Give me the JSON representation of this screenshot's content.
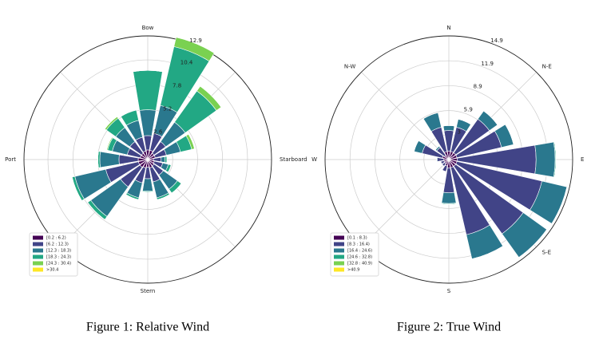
{
  "chart_data": [
    {
      "type": "windrose",
      "title": "Figure 1: Relative Wind",
      "categories": [
        "Bow",
        null,
        null,
        null,
        "Starboard",
        null,
        null,
        null,
        "Stern",
        null,
        null,
        null,
        "Port",
        null,
        null,
        null
      ],
      "rlim": [
        0,
        12.9
      ],
      "rticks": [
        2.6,
        5.2,
        7.8,
        10.4,
        12.9
      ],
      "grid": true,
      "legend": "lower left",
      "series": [
        {
          "name": "[0.2 : 6.2)",
          "color": "#440154",
          "values": [
            1.0,
            1.0,
            0.8,
            0.8,
            0.6,
            0.7,
            0.8,
            0.9,
            0.8,
            0.9,
            1.0,
            1.0,
            1.0,
            0.8,
            0.8,
            0.9
          ]
        },
        {
          "name": "[6.2 : 12.3)",
          "color": "#414487",
          "values": [
            1.5,
            1.8,
            1.5,
            1.2,
            0.8,
            0.9,
            1.2,
            1.5,
            1.2,
            1.6,
            2.5,
            3.5,
            2.0,
            1.4,
            1.5,
            1.5
          ]
        },
        {
          "name": "[12.3 : 18.3)",
          "color": "#2a788e",
          "values": [
            2.7,
            3.0,
            2.5,
            1.5,
            0.4,
            0.6,
            1.8,
            1.7,
            1.3,
            1.6,
            3.8,
            3.3,
            2.0,
            1.6,
            1.8,
            1.8
          ]
        },
        {
          "name": "[18.3 : 24.3)",
          "color": "#22a884",
          "values": [
            4.1,
            6.3,
            4.0,
            1.2,
            0.2,
            0.3,
            0.5,
            0.2,
            0.1,
            0.2,
            0.4,
            0.3,
            0.2,
            0.5,
            1.2,
            1.1
          ]
        },
        {
          "name": "[24.3 : 30.4)",
          "color": "#7ad151",
          "values": [
            0,
            1.0,
            0.6,
            0.3,
            0,
            0,
            0,
            0,
            0,
            0,
            0,
            0,
            0,
            0.1,
            0.2,
            0
          ]
        },
        {
          "name": ">30.4",
          "color": "#fde725",
          "values": [
            0,
            0,
            0,
            0,
            0,
            0,
            0,
            0,
            0,
            0,
            0,
            0,
            0,
            0,
            0,
            0
          ]
        }
      ]
    },
    {
      "type": "windrose",
      "title": "Figure 2: True Wind",
      "categories": [
        "N",
        null,
        "N-E",
        null,
        "E",
        null,
        "S-E",
        null,
        "S",
        null,
        null,
        null,
        "W",
        null,
        "N-W",
        null
      ],
      "rlim": [
        0,
        14.9
      ],
      "rticks": [
        3.0,
        5.9,
        8.9,
        11.9,
        14.9
      ],
      "grid": true,
      "legend": "lower left",
      "series": [
        {
          "name": "[0.1 : 8.3)",
          "color": "#440154",
          "values": [
            1.0,
            1.0,
            1.0,
            1.0,
            1.0,
            1.0,
            1.0,
            1.0,
            1.0,
            0.8,
            0.6,
            0.6,
            0.6,
            0.8,
            0.6,
            1.0
          ]
        },
        {
          "name": "[8.3 : 16.4)",
          "color": "#414487",
          "values": [
            2.5,
            3.0,
            5.0,
            5.5,
            9.5,
            10.5,
            10.0,
            8.3,
            3.0,
            0.7,
            0.4,
            0.4,
            0.8,
            2.5,
            1.2,
            3.0
          ]
        },
        {
          "name": "[16.4 : 24.6)",
          "color": "#2a788e",
          "values": [
            0.6,
            1.0,
            1.2,
            1.5,
            2.3,
            3.1,
            3.5,
            3.0,
            1.3,
            0,
            0,
            0,
            0.1,
            1.0,
            0.2,
            1.8
          ]
        },
        {
          "name": "[24.6 : 32.8)",
          "color": "#22a884",
          "values": [
            0,
            0,
            0,
            0,
            0.1,
            0,
            0,
            0,
            0.1,
            0,
            0,
            0,
            0,
            0,
            0,
            0
          ]
        },
        {
          "name": "[32.8 : 40.9)",
          "color": "#7ad151",
          "values": [
            0,
            0,
            0,
            0,
            0,
            0,
            0,
            0,
            0,
            0,
            0,
            0,
            0,
            0,
            0,
            0
          ]
        },
        {
          "name": ">40.9",
          "color": "#fde725",
          "values": [
            0,
            0,
            0,
            0,
            0,
            0,
            0,
            0,
            0,
            0,
            0,
            0,
            0,
            0,
            0,
            0
          ]
        }
      ]
    }
  ]
}
